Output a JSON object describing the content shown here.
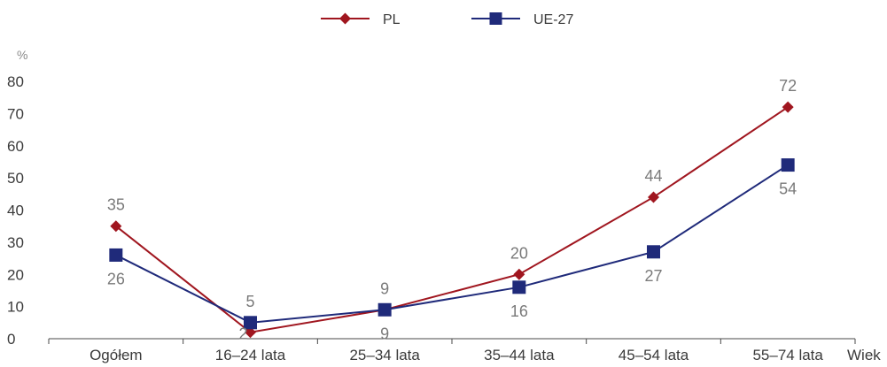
{
  "chart_data": {
    "type": "line",
    "ylabel": "%",
    "xlabel": "Wiek",
    "ylim": [
      0,
      80
    ],
    "yticks": [
      0,
      10,
      20,
      30,
      40,
      50,
      60,
      70,
      80
    ],
    "categories": [
      "Ogółem",
      "16–24 lata",
      "25–34 lata",
      "35–44 lata",
      "45–54 lata",
      "55–74 lata"
    ],
    "legend_position": "top-center",
    "grid": false,
    "series": [
      {
        "name": "PL",
        "marker": "diamond",
        "color": "#a0161f",
        "values": [
          35,
          2,
          9,
          20,
          44,
          72
        ],
        "label_positions": [
          "above",
          "below",
          "above",
          "above",
          "above",
          "above"
        ]
      },
      {
        "name": "UE-27",
        "marker": "square",
        "color": "#1f2a7a",
        "values": [
          26,
          5,
          9,
          16,
          27,
          54
        ],
        "label_positions": [
          "below",
          "above",
          "below",
          "below",
          "below",
          "below"
        ]
      }
    ]
  }
}
